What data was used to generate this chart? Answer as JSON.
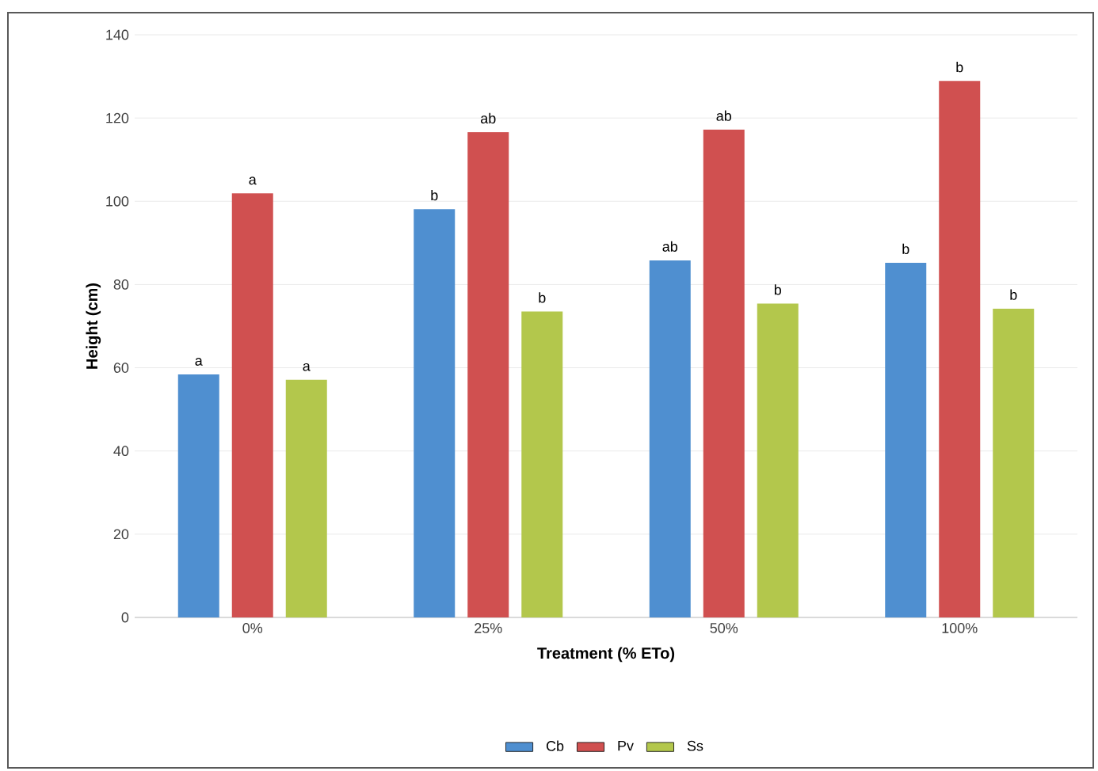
{
  "chart_data": {
    "type": "bar",
    "xlabel": "Treatment (% ETo)",
    "ylabel": "Height (cm)",
    "categories": [
      "0%",
      "25%",
      "50%",
      "100%"
    ],
    "series": [
      {
        "name": "Cb",
        "color": "#4f8fd0",
        "values": [
          58.4,
          98.1,
          85.8,
          85.2
        ],
        "value_labels": [
          "a",
          "b",
          "ab",
          "b"
        ]
      },
      {
        "name": "Pv",
        "color": "#d05050",
        "values": [
          101.9,
          116.6,
          117.2,
          128.9
        ],
        "value_labels": [
          "a",
          "ab",
          "ab",
          "b"
        ]
      },
      {
        "name": "Ss",
        "color": "#b3c74c",
        "values": [
          57.1,
          73.5,
          75.4,
          74.2
        ],
        "value_labels": [
          "a",
          "b",
          "b",
          "b"
        ]
      }
    ],
    "ylim": [
      0,
      140
    ],
    "yticks": [
      0,
      20,
      40,
      60,
      80,
      100,
      120,
      140
    ],
    "grid": "y",
    "legend": "bottom"
  }
}
